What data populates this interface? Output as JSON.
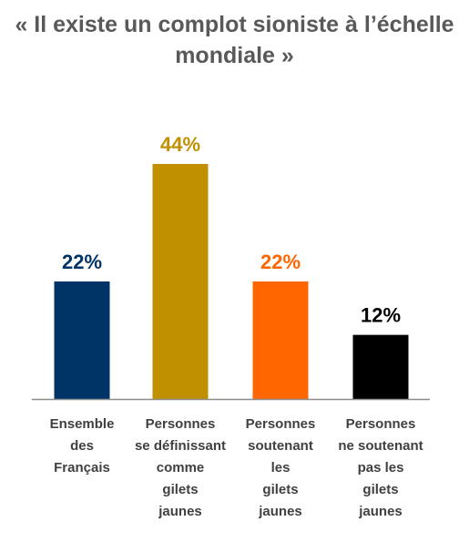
{
  "chart_data": {
    "type": "bar",
    "title_lines": [
      "« Il existe un complot sioniste à l’échelle",
      "mondiale »"
    ],
    "categories": [
      [
        "Ensemble",
        "des",
        "Français"
      ],
      [
        "Personnes",
        "se définissant",
        "comme",
        "gilets",
        "jaunes"
      ],
      [
        "Personnes",
        "soutenant",
        "les",
        "gilets",
        "jaunes"
      ],
      [
        "Personnes",
        "ne soutenant",
        "pas les",
        "gilets",
        "jaunes"
      ]
    ],
    "values": [
      22,
      44,
      22,
      12
    ],
    "value_labels": [
      "22%",
      "44%",
      "22%",
      "12%"
    ],
    "colors": [
      "#003366",
      "#C09000",
      "#FF6600",
      "#000000"
    ],
    "ylim": [
      0,
      44
    ],
    "grid": false,
    "legend": "none"
  }
}
